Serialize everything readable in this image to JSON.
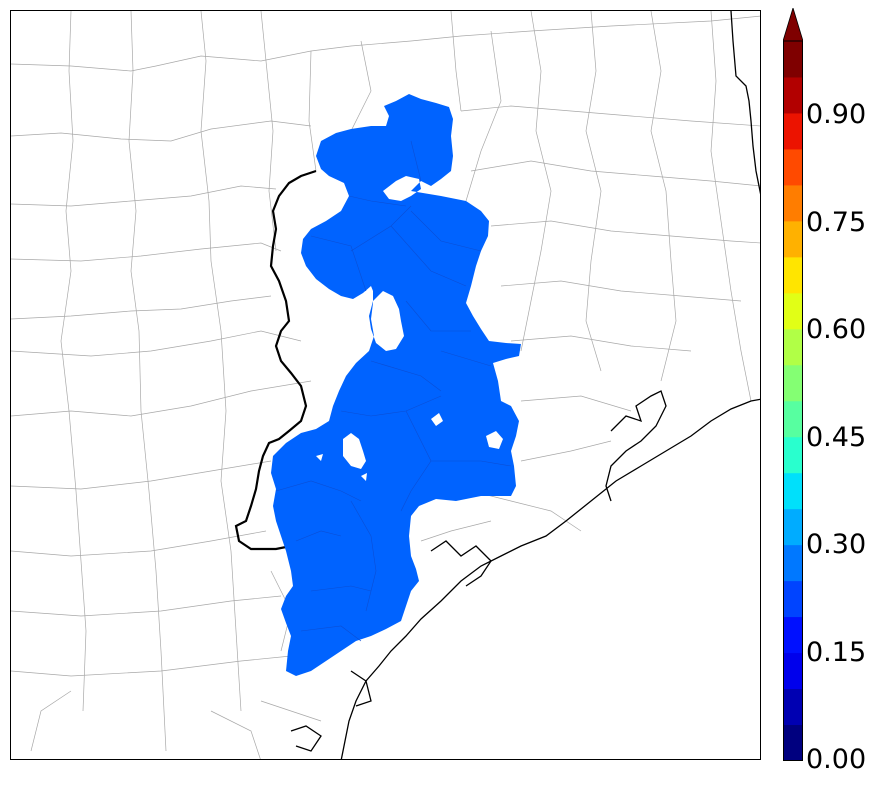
{
  "map": {
    "county_line_color": "#a8a8a8",
    "coast_color": "#000000",
    "boundary_color": "#000000",
    "field_color": "#0063ff",
    "field_level": 0.2
  },
  "colorbar": {
    "min": 0.0,
    "max": 1.0,
    "step": 0.05,
    "extend": "max",
    "ticks": [
      "0.00",
      "0.15",
      "0.30",
      "0.45",
      "0.60",
      "0.75",
      "0.90"
    ],
    "colors": [
      "#00007f",
      "#0000b2",
      "#0000ec",
      "#0010ff",
      "#0044ff",
      "#0078ff",
      "#00acff",
      "#00e0fb",
      "#29ffce",
      "#57ffa0",
      "#84ff73",
      "#b1ff46",
      "#e1ff16",
      "#ffe500",
      "#ffb100",
      "#ff7d00",
      "#ff4a00",
      "#ec1300",
      "#b20000",
      "#7f0000"
    ],
    "over_color": "#7f0000"
  }
}
